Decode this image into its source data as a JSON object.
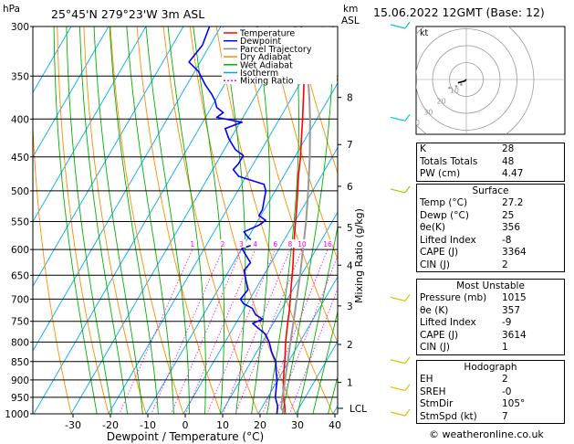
{
  "header": {
    "location": "25°45'N  279°23'W  3m  ASL",
    "hpa_unit": "hPa",
    "km_unit": "km",
    "asl_unit": "ASL",
    "datetime": "15.06.2022  12GMT  (Base: 12)"
  },
  "legend": [
    {
      "label": "Temperature",
      "color": "#ff0000",
      "dash": ""
    },
    {
      "label": "Dewpoint",
      "color": "#0000ff",
      "dash": ""
    },
    {
      "label": "Parcel Trajectory",
      "color": "#888888",
      "dash": ""
    },
    {
      "label": "Dry Adiabat",
      "color": "#ff8c00",
      "dash": ""
    },
    {
      "label": "Wet Adiabat",
      "color": "#00b000",
      "dash": ""
    },
    {
      "label": "Isotherm",
      "color": "#00a0ff",
      "dash": ""
    },
    {
      "label": "Mixing Ratio",
      "color": "#ff00ff",
      "dash": "2,2"
    }
  ],
  "chart_data": {
    "type": "line",
    "xlabel": "Dewpoint / Temperature (°C)",
    "ylabel": "Mixing Ratio (g/kg)",
    "x_ticks": [
      -30,
      -20,
      -10,
      0,
      10,
      20,
      30,
      40
    ],
    "pressure_levels": [
      300,
      350,
      400,
      450,
      500,
      550,
      600,
      650,
      700,
      750,
      800,
      850,
      900,
      950,
      1000
    ],
    "km_ticks": [
      {
        "km": "1",
        "p": 907
      },
      {
        "km": "2",
        "p": 806
      },
      {
        "km": "3",
        "p": 715
      },
      {
        "km": "4",
        "p": 630
      },
      {
        "km": "5",
        "p": 560
      },
      {
        "km": "6",
        "p": 493
      },
      {
        "km": "7",
        "p": 433
      },
      {
        "km": "8",
        "p": 374
      }
    ],
    "lcl": {
      "label": "LCL",
      "p": 983
    },
    "mixing_ratio_labels": [
      "1",
      "2",
      "3",
      "4",
      "6",
      "8",
      "10",
      "16",
      "20",
      "25"
    ],
    "mixing_ratios": [
      1,
      2,
      3,
      4,
      6,
      8,
      10,
      16,
      20,
      25
    ],
    "series": [
      {
        "name": "Temperature",
        "color": "#ff0000",
        "points": [
          [
            1000,
            27.2
          ],
          [
            975,
            25.8
          ],
          [
            950,
            24.2
          ],
          [
            925,
            22.8
          ],
          [
            900,
            21.5
          ],
          [
            875,
            20.2
          ],
          [
            850,
            19.0
          ],
          [
            825,
            17.6
          ],
          [
            800,
            16.2
          ],
          [
            775,
            14.9
          ],
          [
            750,
            13.6
          ],
          [
            725,
            12.3
          ],
          [
            700,
            10.8
          ],
          [
            675,
            9.2
          ],
          [
            650,
            7.6
          ],
          [
            625,
            5.9
          ],
          [
            600,
            4.0
          ],
          [
            575,
            2.1
          ],
          [
            550,
            0.2
          ],
          [
            525,
            -1.8
          ],
          [
            500,
            -4.0
          ],
          [
            475,
            -6.3
          ],
          [
            450,
            -8.5
          ],
          [
            425,
            -11.1
          ],
          [
            400,
            -13.8
          ],
          [
            375,
            -16.8
          ],
          [
            350,
            -20.0
          ],
          [
            325,
            -24.0
          ],
          [
            300,
            -28.5
          ]
        ]
      },
      {
        "name": "Dewpoint",
        "color": "#0000ff",
        "points": [
          [
            1000,
            25.0
          ],
          [
            975,
            23.9
          ],
          [
            950,
            22.0
          ],
          [
            925,
            20.9
          ],
          [
            900,
            19.8
          ],
          [
            875,
            18.1
          ],
          [
            850,
            16.6
          ],
          [
            825,
            14.0
          ],
          [
            800,
            11.8
          ],
          [
            780,
            9.5
          ],
          [
            765,
            6.5
          ],
          [
            755,
            4.5
          ],
          [
            745,
            6.5
          ],
          [
            735,
            4.0
          ],
          [
            720,
            2.0
          ],
          [
            710,
            -1.0
          ],
          [
            700,
            -2.5
          ],
          [
            680,
            -2.0
          ],
          [
            660,
            -4.0
          ],
          [
            640,
            -6.0
          ],
          [
            625,
            -5.5
          ],
          [
            610,
            -8.0
          ],
          [
            598,
            -10.0
          ],
          [
            590,
            -7.0
          ],
          [
            578,
            -10.0
          ],
          [
            568,
            -12.0
          ],
          [
            556,
            -9.0
          ],
          [
            548,
            -8.0
          ],
          [
            540,
            -10.5
          ],
          [
            530,
            -10.5
          ],
          [
            515,
            -11.5
          ],
          [
            500,
            -12.5
          ],
          [
            490,
            -14.0
          ],
          [
            478,
            -22.0
          ],
          [
            468,
            -24.5
          ],
          [
            460,
            -24.0
          ],
          [
            448,
            -24.0
          ],
          [
            440,
            -27.0
          ],
          [
            425,
            -30.5
          ],
          [
            412,
            -33.0
          ],
          [
            404,
            -29.5
          ],
          [
            398,
            -37.0
          ],
          [
            392,
            -36.0
          ],
          [
            386,
            -38.5
          ],
          [
            378,
            -40.0
          ],
          [
            370,
            -42.0
          ],
          [
            360,
            -45.0
          ],
          [
            345,
            -49.0
          ],
          [
            335,
            -53.0
          ],
          [
            318,
            -52.0
          ],
          [
            300,
            -53.0
          ]
        ]
      },
      {
        "name": "Parcel Trajectory",
        "color": "#999999",
        "points": [
          [
            1000,
            27.2
          ],
          [
            983,
            25.3
          ],
          [
            950,
            23.9
          ],
          [
            900,
            21.9
          ],
          [
            850,
            19.8
          ],
          [
            800,
            17.5
          ],
          [
            750,
            15.1
          ],
          [
            700,
            12.5
          ],
          [
            650,
            9.7
          ],
          [
            600,
            6.5
          ],
          [
            550,
            3.0
          ],
          [
            500,
            -1.2
          ],
          [
            450,
            -6.0
          ],
          [
            400,
            -11.8
          ],
          [
            375,
            -15.2
          ],
          [
            350,
            -19.0
          ]
        ]
      }
    ],
    "hodograph": {
      "label": "kt",
      "rings_kt": [
        10,
        20,
        30,
        40
      ],
      "ring_labels": [
        "10",
        "20",
        "30",
        "40"
      ],
      "gray_points": [
        [
          -10,
          -5
        ],
        [
          -6,
          -4
        ],
        [
          -3,
          -3
        ]
      ],
      "trace": [
        [
          0,
          0
        ],
        [
          -1,
          -1
        ],
        [
          -2,
          -1.2
        ],
        [
          -5,
          -2
        ]
      ]
    },
    "wind_barbs": [
      {
        "p": 300,
        "color": "#00c8c8"
      },
      {
        "p": 400,
        "color": "#00c8c8"
      },
      {
        "p": 500,
        "color": "#90d000"
      },
      {
        "p": 700,
        "color": "#e0c000"
      },
      {
        "p": 850,
        "color": "#e0c000"
      },
      {
        "p": 925,
        "color": "#e0c000"
      },
      {
        "p": 1000,
        "color": "#e0c000"
      }
    ]
  },
  "indices": {
    "basic": [
      {
        "label": "K",
        "value": "28"
      },
      {
        "label": "Totals Totals",
        "value": "48"
      },
      {
        "label": "PW (cm)",
        "value": "4.47"
      }
    ],
    "surface": {
      "title": "Surface",
      "rows": [
        {
          "label": "Temp (°C)",
          "value": "27.2"
        },
        {
          "label": "Dewp (°C)",
          "value": "25"
        },
        {
          "label": "θe(K)",
          "value": "356"
        },
        {
          "label": "Lifted Index",
          "value": "-8"
        },
        {
          "label": "CAPE (J)",
          "value": "3364"
        },
        {
          "label": "CIN (J)",
          "value": "2"
        }
      ]
    },
    "unstable": {
      "title": "Most Unstable",
      "rows": [
        {
          "label": "Pressure (mb)",
          "value": "1015"
        },
        {
          "label": "θe (K)",
          "value": "357"
        },
        {
          "label": "Lifted Index",
          "value": "-9"
        },
        {
          "label": "CAPE (J)",
          "value": "3614"
        },
        {
          "label": "CIN (J)",
          "value": "1"
        }
      ]
    },
    "hodograph": {
      "title": "Hodograph",
      "rows": [
        {
          "label": "EH",
          "value": "2"
        },
        {
          "label": "SREH",
          "value": "-0"
        },
        {
          "label": "StmDir",
          "value": "105°"
        },
        {
          "label": "StmSpd (kt)",
          "value": "7"
        }
      ]
    }
  },
  "credit": "© weatheronline.co.uk"
}
